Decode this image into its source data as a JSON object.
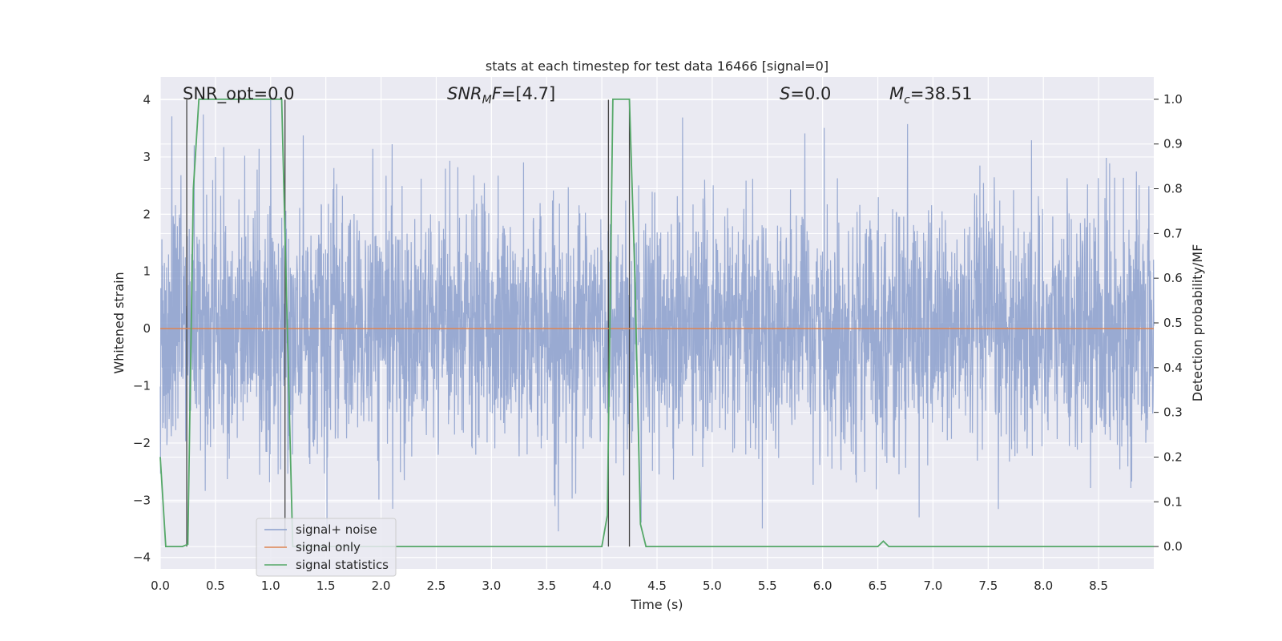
{
  "chart_data": {
    "type": "line",
    "title": "stats at each timestep for test data 16466 [signal=0]",
    "xlabel": "Time (s)",
    "ylabel_left": "Whitened strain",
    "ylabel_right": "Detection probability/MF",
    "xlim": [
      0.0,
      9.0
    ],
    "ylim_left": [
      -4.2,
      4.4
    ],
    "ylim_right": [
      -0.05,
      1.05
    ],
    "xticks": [
      "0.0",
      "0.5",
      "1.0",
      "1.5",
      "2.0",
      "2.5",
      "3.0",
      "3.5",
      "4.0",
      "4.5",
      "5.0",
      "5.5",
      "6.0",
      "6.5",
      "7.0",
      "7.5",
      "8.0",
      "8.5"
    ],
    "yticks_left": [
      "4",
      "3",
      "2",
      "1",
      "0",
      "−1",
      "−2",
      "−3",
      "−4"
    ],
    "yticks_right": [
      "1.0",
      "0.9",
      "0.8",
      "0.7",
      "0.6",
      "0.5",
      "0.4",
      "0.3",
      "0.2",
      "0.1",
      "0.0"
    ],
    "grid": true,
    "legend_position": "lower-left",
    "annotations": {
      "snr_opt": "SNR_opt=0.0",
      "snr_mf": "=[4.7]",
      "s": "=0.0",
      "mc": "=38.51"
    },
    "series": [
      {
        "name": "signal+ noise",
        "color": "#8b9fcc",
        "description_values": "white noise, approx range -3.8 to 4.0"
      },
      {
        "name": "signal only",
        "color": "#dd8452",
        "x": [
          0.0,
          9.0
        ],
        "y": [
          0.0,
          0.0
        ]
      },
      {
        "name": "signal statistics",
        "color": "#55a868",
        "x": [
          0.0,
          0.05,
          0.2,
          0.25,
          0.3,
          0.35,
          0.5,
          0.8,
          1.0,
          1.1,
          1.15,
          1.2,
          1.4,
          2.0,
          3.0,
          4.0,
          4.05,
          4.1,
          4.15,
          4.25,
          4.3,
          4.35,
          4.4,
          5.0,
          6.0,
          6.5,
          6.55,
          6.6,
          6.7,
          7.0,
          8.0,
          9.0
        ],
        "y": [
          0.2,
          0.0,
          0.0,
          0.005,
          0.8,
          1.0,
          1.0,
          1.0,
          1.0,
          1.0,
          0.5,
          0.0,
          0.0,
          0.0,
          0.0,
          0.0,
          0.07,
          1.0,
          1.0,
          1.0,
          0.6,
          0.05,
          0.0,
          0.0,
          0.0,
          0.0,
          0.012,
          0.0,
          0.0,
          0.0,
          0.0,
          0.0
        ]
      }
    ],
    "vertical_markers_x": [
      0.24,
      1.13,
      4.06,
      4.25
    ]
  }
}
